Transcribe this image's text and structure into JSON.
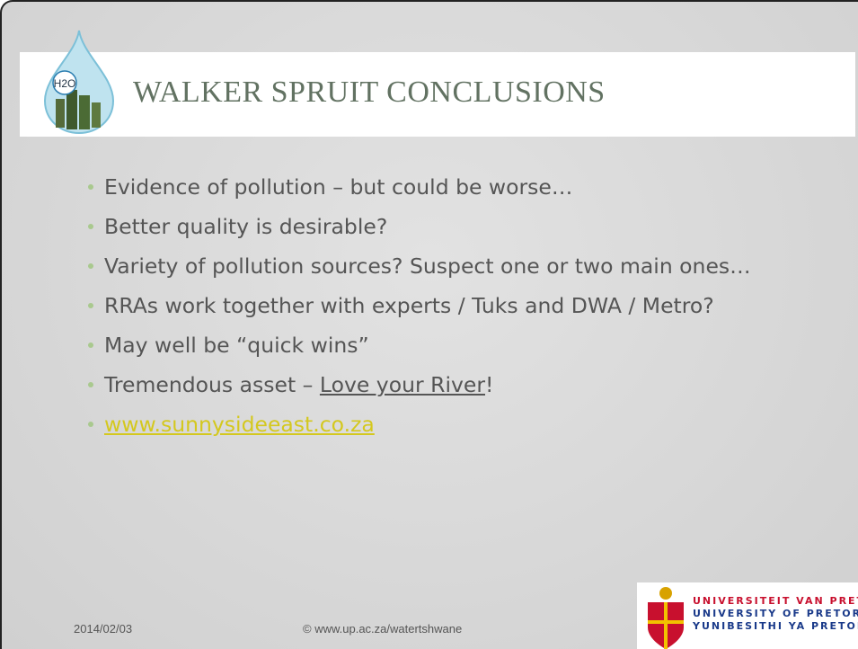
{
  "title": "WALKER SPRUIT CONCLUSIONS",
  "logo_text": "H2O",
  "bullets": [
    [
      "Evidence of pollution – but could be worse…"
    ],
    [
      "Better quality is desirable?"
    ],
    [
      "Variety of pollution sources? Suspect one or two main ones…"
    ],
    [
      "RRAs work together with experts / Tuks and DWA / Metro?"
    ],
    [
      "May well be “quick wins”"
    ],
    [
      "Tremendous asset – ",
      {
        "text": "Love your River",
        "underline": true
      },
      "!"
    ],
    [
      {
        "text": "www.sunnysideeast.co.za",
        "link": true
      }
    ]
  ],
  "footer": {
    "date": "2014/02/03",
    "copyright": "© www.up.ac.za/watertshwane"
  },
  "university": [
    "UNIVERSITEIT VAN PRETORI",
    "UNIVERSITY OF PRETORI",
    "YUNIBESITHI YA PRETORI"
  ]
}
